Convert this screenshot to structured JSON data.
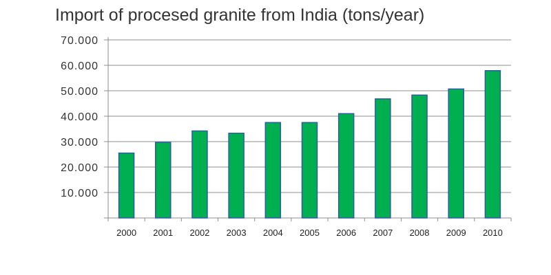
{
  "chart_data": {
    "type": "bar",
    "title": "Import of procesed granite from India (tons/year)",
    "xlabel": "",
    "ylabel": "",
    "categories": [
      "2000",
      "2001",
      "2002",
      "2003",
      "2004",
      "2005",
      "2006",
      "2007",
      "2008",
      "2009",
      "2010"
    ],
    "values": [
      25500,
      29700,
      34200,
      33300,
      37500,
      37500,
      41000,
      46800,
      48300,
      50700,
      57900
    ],
    "ylim": [
      0,
      70000
    ],
    "y_ticks": [
      10000,
      20000,
      30000,
      40000,
      50000,
      60000,
      70000
    ],
    "y_tick_labels": [
      "10.000",
      "20.000",
      "30.000",
      "40.000",
      "50.000",
      "60.000",
      "70.000"
    ],
    "grid": "horizontal",
    "colors": {
      "bar_fill": "#00b050",
      "bar_edge": "#2e5aa8",
      "grid": "#8c8c8c",
      "axis": "#8c8c8c"
    }
  }
}
